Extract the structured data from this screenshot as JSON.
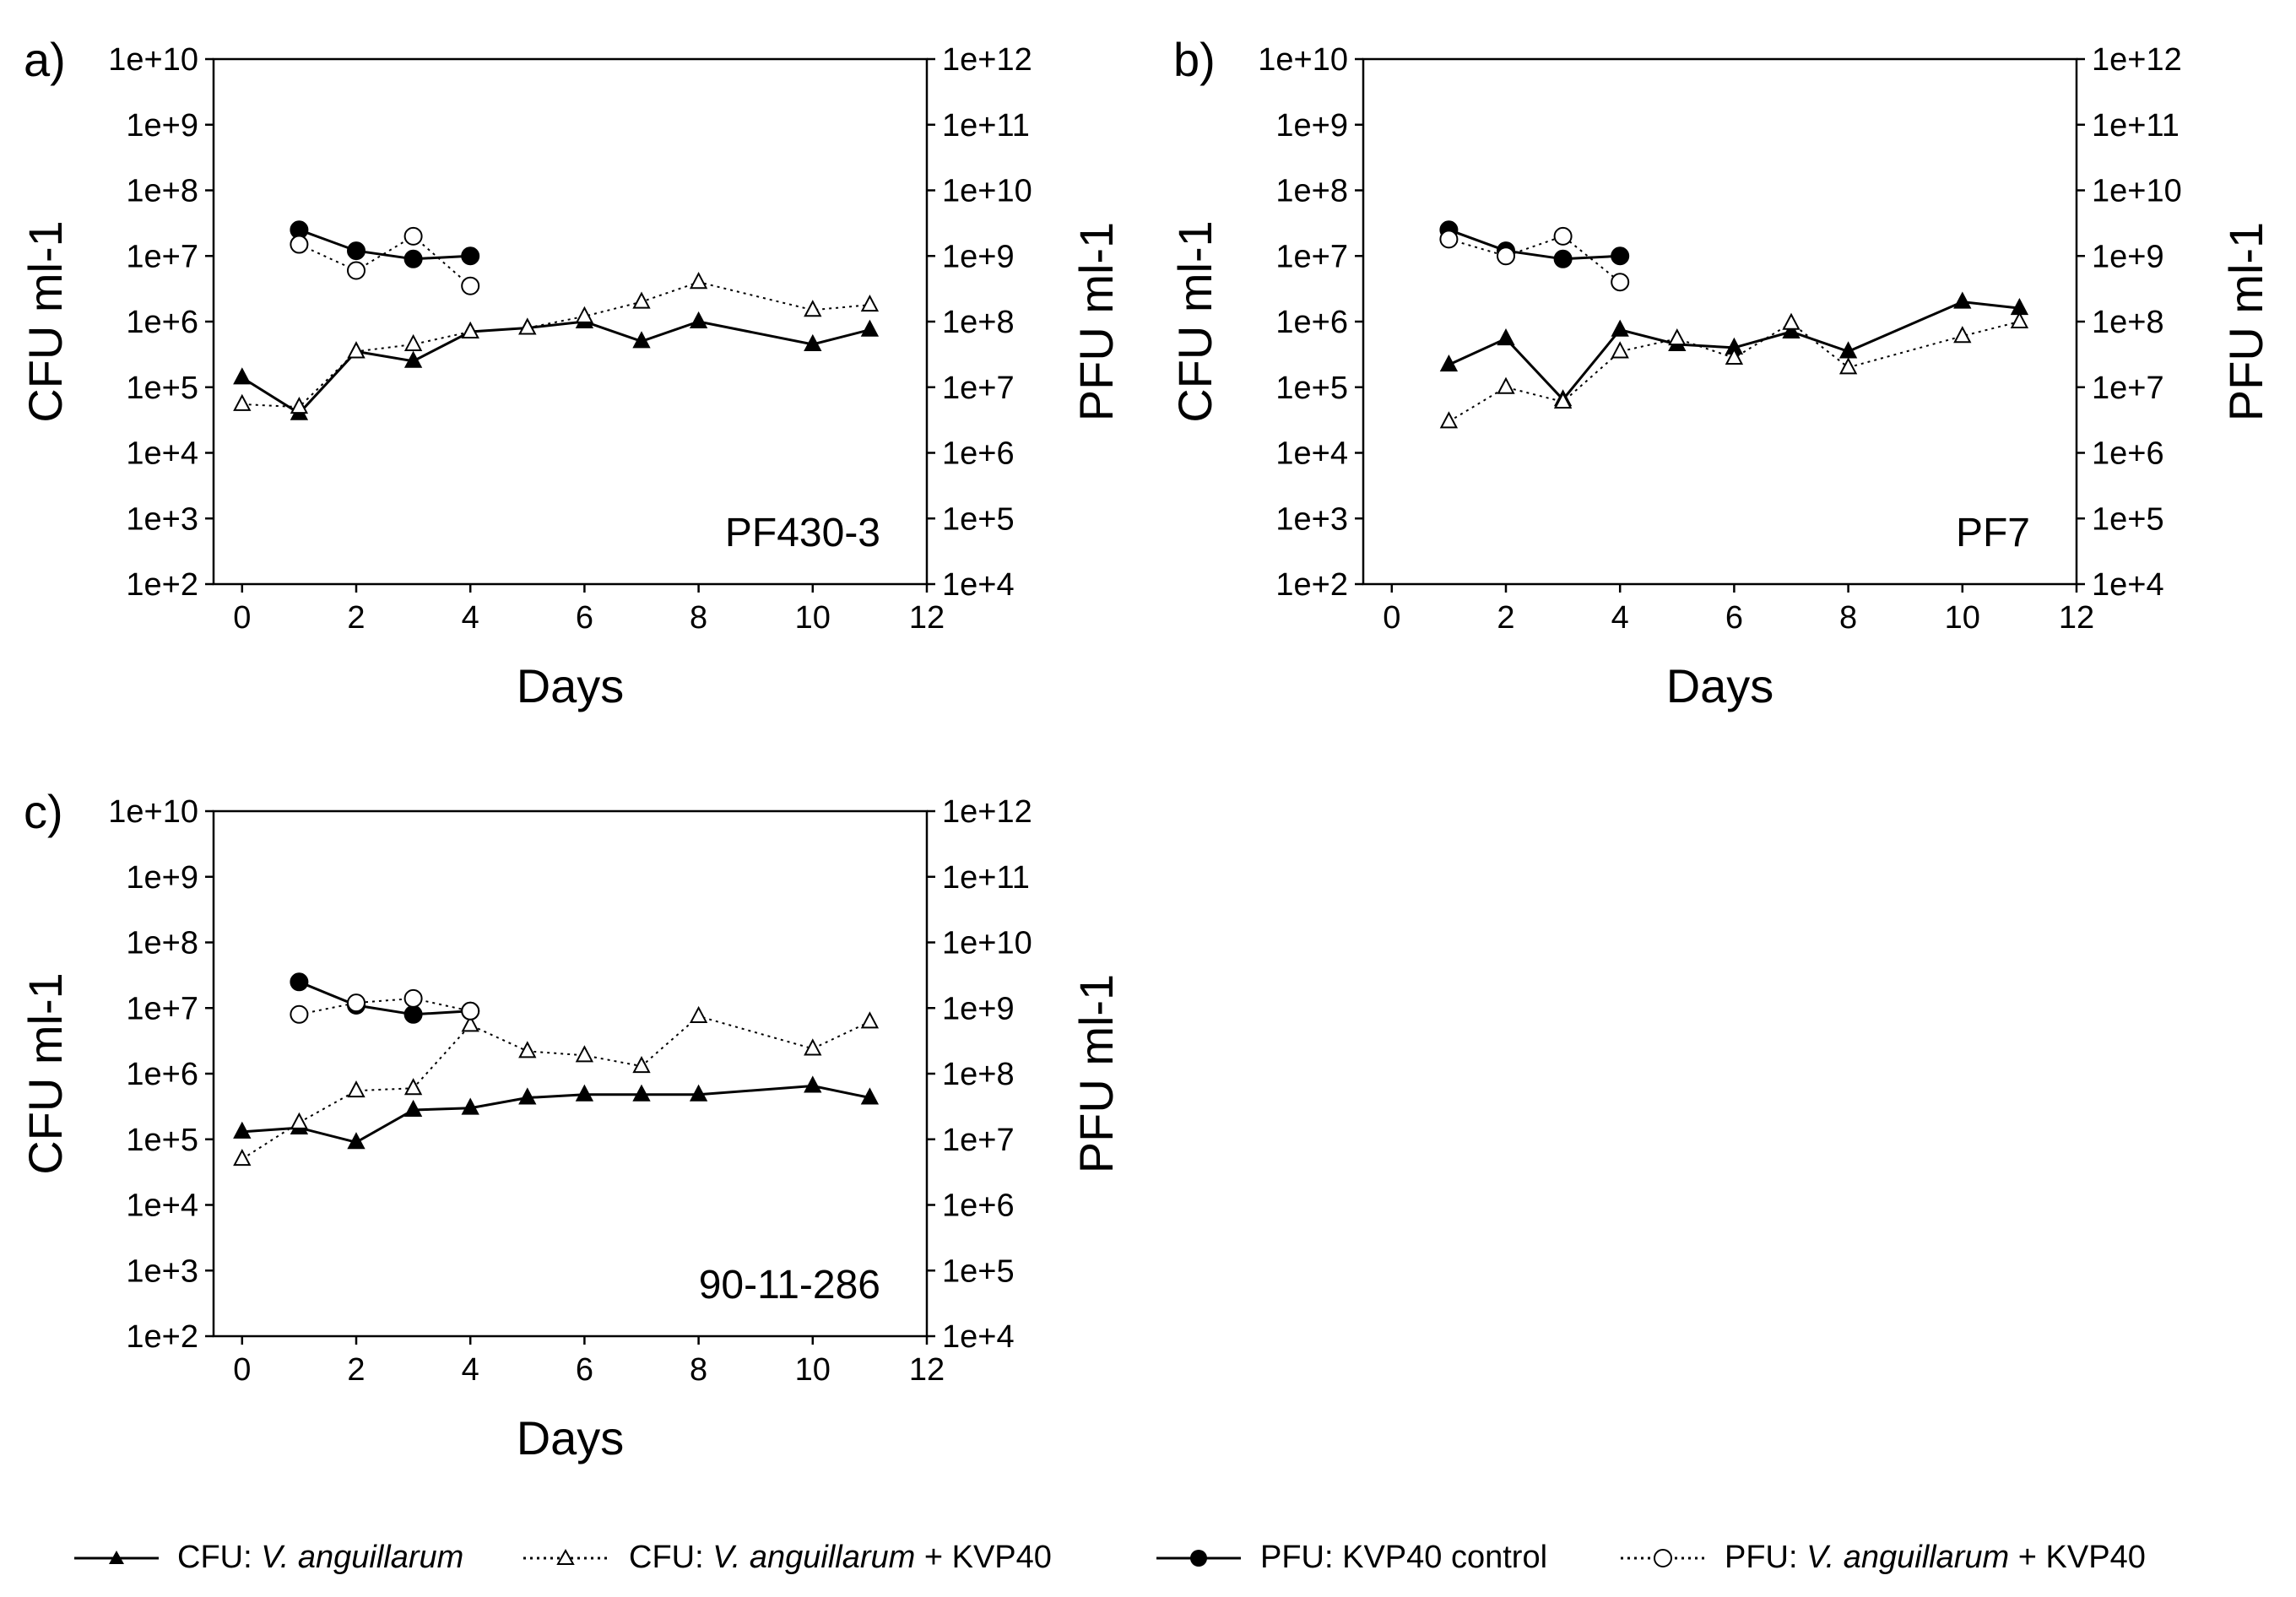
{
  "chart_data": [
    {
      "type": "line",
      "panel_label": "a)",
      "annotation": "PF430-3",
      "xlabel": "Days",
      "ylabel": "CFU ml-1",
      "y2label": "PFU ml-1",
      "xlim": [
        -0.5,
        12
      ],
      "xticks": [
        "0",
        "2",
        "4",
        "6",
        "8",
        "10",
        "12"
      ],
      "ylim_log10": [
        2,
        10
      ],
      "yticks": [
        "1e+2",
        "1e+3",
        "1e+4",
        "1e+5",
        "1e+6",
        "1e+7",
        "1e+8",
        "1e+9",
        "1e+10"
      ],
      "y2lim_log10": [
        4,
        12
      ],
      "y2ticks": [
        "1e+4",
        "1e+5",
        "1e+6",
        "1e+7",
        "1e+8",
        "1e+9",
        "1e+10",
        "1e+11",
        "1e+12"
      ],
      "series": [
        {
          "name": "CFU: V. anguillarum",
          "axis": "left",
          "style": "solid-filled-triangle",
          "x": [
            0,
            1,
            2,
            3,
            4,
            5,
            6,
            7,
            8,
            10,
            11
          ],
          "y": [
            140000,
            40000,
            350000,
            250000,
            700000,
            800000,
            1000000,
            500000,
            1000000,
            450000,
            750000
          ]
        },
        {
          "name": "CFU: V. anguillarum + KVP40",
          "axis": "left",
          "style": "dotted-open-triangle",
          "x": [
            0,
            1,
            2,
            3,
            4,
            5,
            6,
            7,
            8,
            10,
            11
          ],
          "y": [
            55000,
            50000,
            350000,
            450000,
            700000,
            800000,
            1200000,
            2000000,
            4000000,
            1500000,
            1800000
          ]
        },
        {
          "name": "PFU: KVP40 control",
          "axis": "right",
          "style": "solid-filled-circle",
          "x": [
            1,
            2,
            3,
            4
          ],
          "y": [
            2500000000,
            1200000000,
            900000000,
            1000000000
          ]
        },
        {
          "name": "PFU: V. anguillarum + KVP40",
          "axis": "right",
          "style": "dotted-open-circle",
          "x": [
            1,
            2,
            3,
            4
          ],
          "y": [
            1500000000,
            600000000,
            2000000000,
            350000000
          ]
        }
      ]
    },
    {
      "type": "line",
      "panel_label": "b)",
      "annotation": "PF7",
      "xlabel": "Days",
      "ylabel": "CFU ml-1",
      "y2label": "PFU ml-1",
      "xlim": [
        -0.5,
        12
      ],
      "xticks": [
        "0",
        "2",
        "4",
        "6",
        "8",
        "10",
        "12"
      ],
      "ylim_log10": [
        2,
        10
      ],
      "yticks": [
        "1e+2",
        "1e+3",
        "1e+4",
        "1e+5",
        "1e+6",
        "1e+7",
        "1e+8",
        "1e+9",
        "1e+10"
      ],
      "y2lim_log10": [
        4,
        12
      ],
      "y2ticks": [
        "1e+4",
        "1e+5",
        "1e+6",
        "1e+7",
        "1e+8",
        "1e+9",
        "1e+10",
        "1e+11",
        "1e+12"
      ],
      "series": [
        {
          "name": "CFU: V. anguillarum",
          "axis": "left",
          "style": "solid-filled-triangle",
          "x": [
            1,
            2,
            3,
            4,
            5,
            6,
            7,
            8,
            10,
            11
          ],
          "y": [
            220000,
            550000,
            65000,
            750000,
            450000,
            400000,
            700000,
            350000,
            2000000,
            1600000
          ]
        },
        {
          "name": "CFU: V. anguillarum + KVP40",
          "axis": "left",
          "style": "dotted-open-triangle",
          "x": [
            1,
            2,
            3,
            4,
            5,
            6,
            7,
            8,
            10,
            11
          ],
          "y": [
            30000,
            100000,
            60000,
            350000,
            550000,
            280000,
            950000,
            200000,
            600000,
            1000000
          ]
        },
        {
          "name": "PFU: KVP40 control",
          "axis": "right",
          "style": "solid-filled-circle",
          "x": [
            1,
            2,
            3,
            4
          ],
          "y": [
            2500000000,
            1200000000,
            900000000,
            1000000000
          ]
        },
        {
          "name": "PFU: V. anguillarum + KVP40",
          "axis": "right",
          "style": "dotted-open-circle",
          "x": [
            1,
            2,
            3,
            4
          ],
          "y": [
            1800000000,
            1000000000,
            2000000000,
            400000000
          ]
        }
      ]
    },
    {
      "type": "line",
      "panel_label": "c)",
      "annotation": "90-11-286",
      "xlabel": "Days",
      "ylabel": "CFU ml-1",
      "y2label": "PFU ml-1",
      "xlim": [
        -0.5,
        12
      ],
      "xticks": [
        "0",
        "2",
        "4",
        "6",
        "8",
        "10",
        "12"
      ],
      "ylim_log10": [
        2,
        10
      ],
      "yticks": [
        "1e+2",
        "1e+3",
        "1e+4",
        "1e+5",
        "1e+6",
        "1e+7",
        "1e+8",
        "1e+9",
        "1e+10"
      ],
      "y2lim_log10": [
        4,
        12
      ],
      "y2ticks": [
        "1e+4",
        "1e+5",
        "1e+6",
        "1e+7",
        "1e+8",
        "1e+9",
        "1e+10",
        "1e+11",
        "1e+12"
      ],
      "series": [
        {
          "name": "CFU: V. anguillarum",
          "axis": "left",
          "style": "solid-filled-triangle",
          "x": [
            0,
            1,
            2,
            3,
            4,
            5,
            6,
            7,
            8,
            10,
            11
          ],
          "y": [
            130000,
            150000,
            90000,
            280000,
            300000,
            430000,
            480000,
            480000,
            480000,
            650000,
            430000
          ]
        },
        {
          "name": "CFU: V. anguillarum + KVP40",
          "axis": "left",
          "style": "dotted-open-triangle",
          "x": [
            0,
            1,
            2,
            3,
            4,
            5,
            6,
            7,
            8,
            10,
            11
          ],
          "y": [
            50000,
            180000,
            550000,
            600000,
            5500000,
            2200000,
            1900000,
            1300000,
            7500000,
            2400000,
            6200000
          ]
        },
        {
          "name": "PFU: KVP40 control",
          "axis": "right",
          "style": "solid-filled-circle",
          "x": [
            1,
            2,
            3,
            4
          ],
          "y": [
            2500000000,
            1100000000,
            800000000,
            900000000
          ]
        },
        {
          "name": "PFU: V. anguillarum + KVP40",
          "axis": "right",
          "style": "dotted-open-circle",
          "x": [
            1,
            2,
            3,
            4
          ],
          "y": [
            800000000,
            1200000000,
            1400000000,
            900000000
          ]
        }
      ]
    }
  ],
  "legend": [
    {
      "text": "CFU: ",
      "italic": "V. anguillarum",
      "suffix": ""
    },
    {
      "text": "CFU: ",
      "italic": "V. anguillarum",
      "suffix": " + KVP40"
    },
    {
      "text": "PFU: KVP40 control",
      "italic": "",
      "suffix": ""
    },
    {
      "text": "PFU: ",
      "italic": "V. anguillarum",
      "suffix": " + KVP40"
    }
  ]
}
